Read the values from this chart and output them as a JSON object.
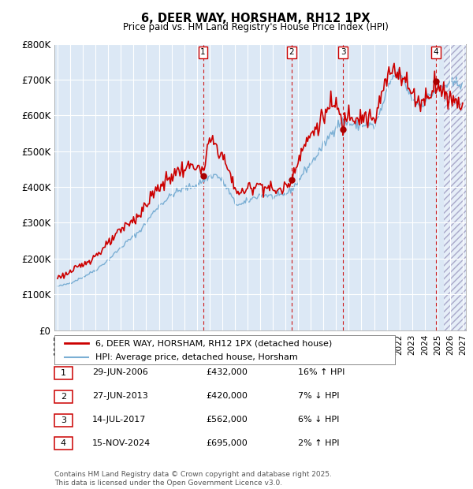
{
  "title": "6, DEER WAY, HORSHAM, RH12 1PX",
  "subtitle": "Price paid vs. HM Land Registry's House Price Index (HPI)",
  "background_color": "#ffffff",
  "plot_bg_color": "#dce8f5",
  "grid_color": "#ffffff",
  "red_line_color": "#cc0000",
  "blue_line_color": "#7bafd4",
  "sale_dot_color": "#aa0000",
  "ylim": [
    0,
    800000
  ],
  "yticks": [
    0,
    100000,
    200000,
    300000,
    400000,
    500000,
    600000,
    700000,
    800000
  ],
  "ytick_labels": [
    "£0",
    "£100K",
    "£200K",
    "£300K",
    "£400K",
    "£500K",
    "£600K",
    "£700K",
    "£800K"
  ],
  "xlim_start": 1994.75,
  "xlim_end": 2027.25,
  "xticks": [
    1995,
    1996,
    1997,
    1998,
    1999,
    2000,
    2001,
    2002,
    2003,
    2004,
    2005,
    2006,
    2007,
    2008,
    2009,
    2010,
    2011,
    2012,
    2013,
    2014,
    2015,
    2016,
    2017,
    2018,
    2019,
    2020,
    2021,
    2022,
    2023,
    2024,
    2025,
    2026,
    2027
  ],
  "legend_entries": [
    "6, DEER WAY, HORSHAM, RH12 1PX (detached house)",
    "HPI: Average price, detached house, Horsham"
  ],
  "sales": [
    {
      "num": 1,
      "date": "29-JUN-2006",
      "price": 432000,
      "hpi_pct": "16%",
      "hpi_dir": "↑",
      "year": 2006.49
    },
    {
      "num": 2,
      "date": "27-JUN-2013",
      "price": 420000,
      "hpi_pct": "7%",
      "hpi_dir": "↓",
      "year": 2013.49
    },
    {
      "num": 3,
      "date": "14-JUL-2017",
      "price": 562000,
      "hpi_pct": "6%",
      "hpi_dir": "↓",
      "year": 2017.54
    },
    {
      "num": 4,
      "date": "15-NOV-2024",
      "price": 695000,
      "hpi_pct": "2%",
      "hpi_dir": "↑",
      "year": 2024.87
    }
  ],
  "vline_color": "#cc0000",
  "footer_text": "Contains HM Land Registry data © Crown copyright and database right 2025.\nThis data is licensed under the Open Government Licence v3.0.",
  "hatch_start": 2025.5
}
